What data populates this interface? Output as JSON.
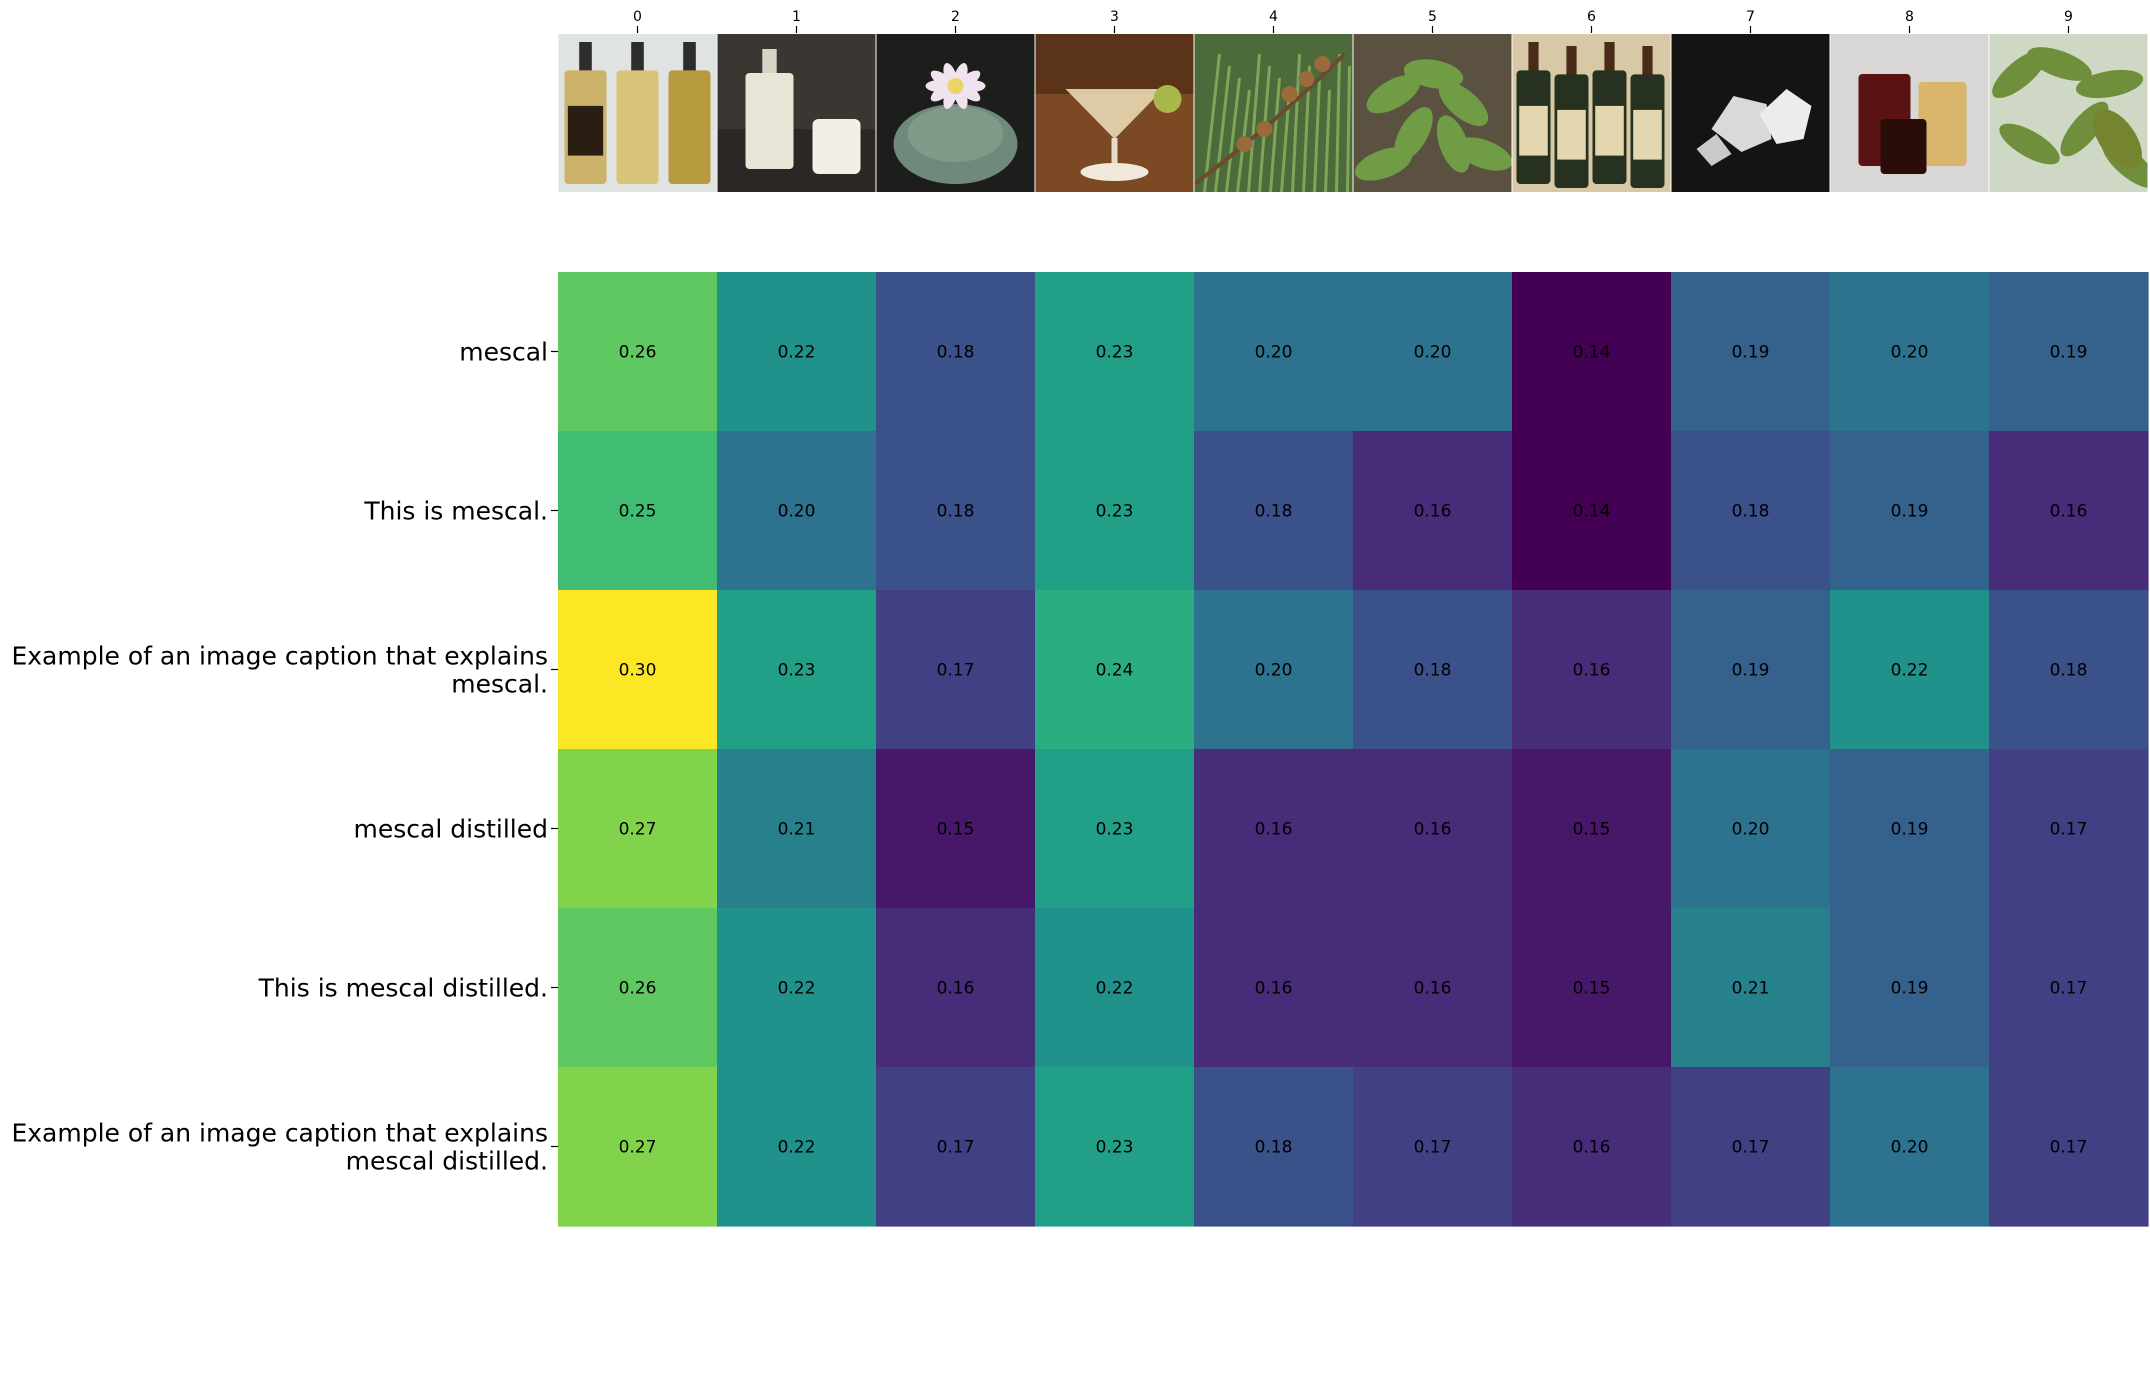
{
  "chart_data": {
    "type": "heatmap",
    "colormap": "viridis",
    "value_range": [
      0.14,
      0.3
    ],
    "columns": [
      "0",
      "1",
      "2",
      "3",
      "4",
      "5",
      "6",
      "7",
      "8",
      "9"
    ],
    "column_images": [
      "three small bottles of amber mescal with labels",
      "glasses of white milky drink on a table",
      "round green cactus with a pale pink flower",
      "cocktail glass with pale drink on a bar",
      "branch with small round brown fruits and leaves",
      "leafy green plants growing in soil",
      "four dark green whiskey bottles with labels",
      "white crystal rocks on black background",
      "two glasses of dark and amber liquid",
      "green leaves with hanging oval pod"
    ],
    "rows": [
      {
        "label": "mescal",
        "values": [
          0.26,
          0.22,
          0.18,
          0.23,
          0.2,
          0.2,
          0.14,
          0.19,
          0.2,
          0.19
        ]
      },
      {
        "label": "This is mescal.",
        "values": [
          0.25,
          0.2,
          0.18,
          0.23,
          0.18,
          0.16,
          0.14,
          0.18,
          0.19,
          0.16
        ]
      },
      {
        "label": "Example of an image caption that explains\nmescal.",
        "values": [
          0.3,
          0.23,
          0.17,
          0.24,
          0.2,
          0.18,
          0.16,
          0.19,
          0.22,
          0.18
        ]
      },
      {
        "label": "mescal distilled",
        "values": [
          0.27,
          0.21,
          0.15,
          0.23,
          0.16,
          0.16,
          0.15,
          0.2,
          0.19,
          0.17
        ]
      },
      {
        "label": "This is mescal distilled.",
        "values": [
          0.26,
          0.22,
          0.16,
          0.22,
          0.16,
          0.16,
          0.15,
          0.21,
          0.19,
          0.17
        ]
      },
      {
        "label": "Example of an image caption that explains\nmescal distilled.",
        "values": [
          0.27,
          0.22,
          0.17,
          0.23,
          0.18,
          0.17,
          0.16,
          0.17,
          0.2,
          0.17
        ]
      }
    ]
  }
}
